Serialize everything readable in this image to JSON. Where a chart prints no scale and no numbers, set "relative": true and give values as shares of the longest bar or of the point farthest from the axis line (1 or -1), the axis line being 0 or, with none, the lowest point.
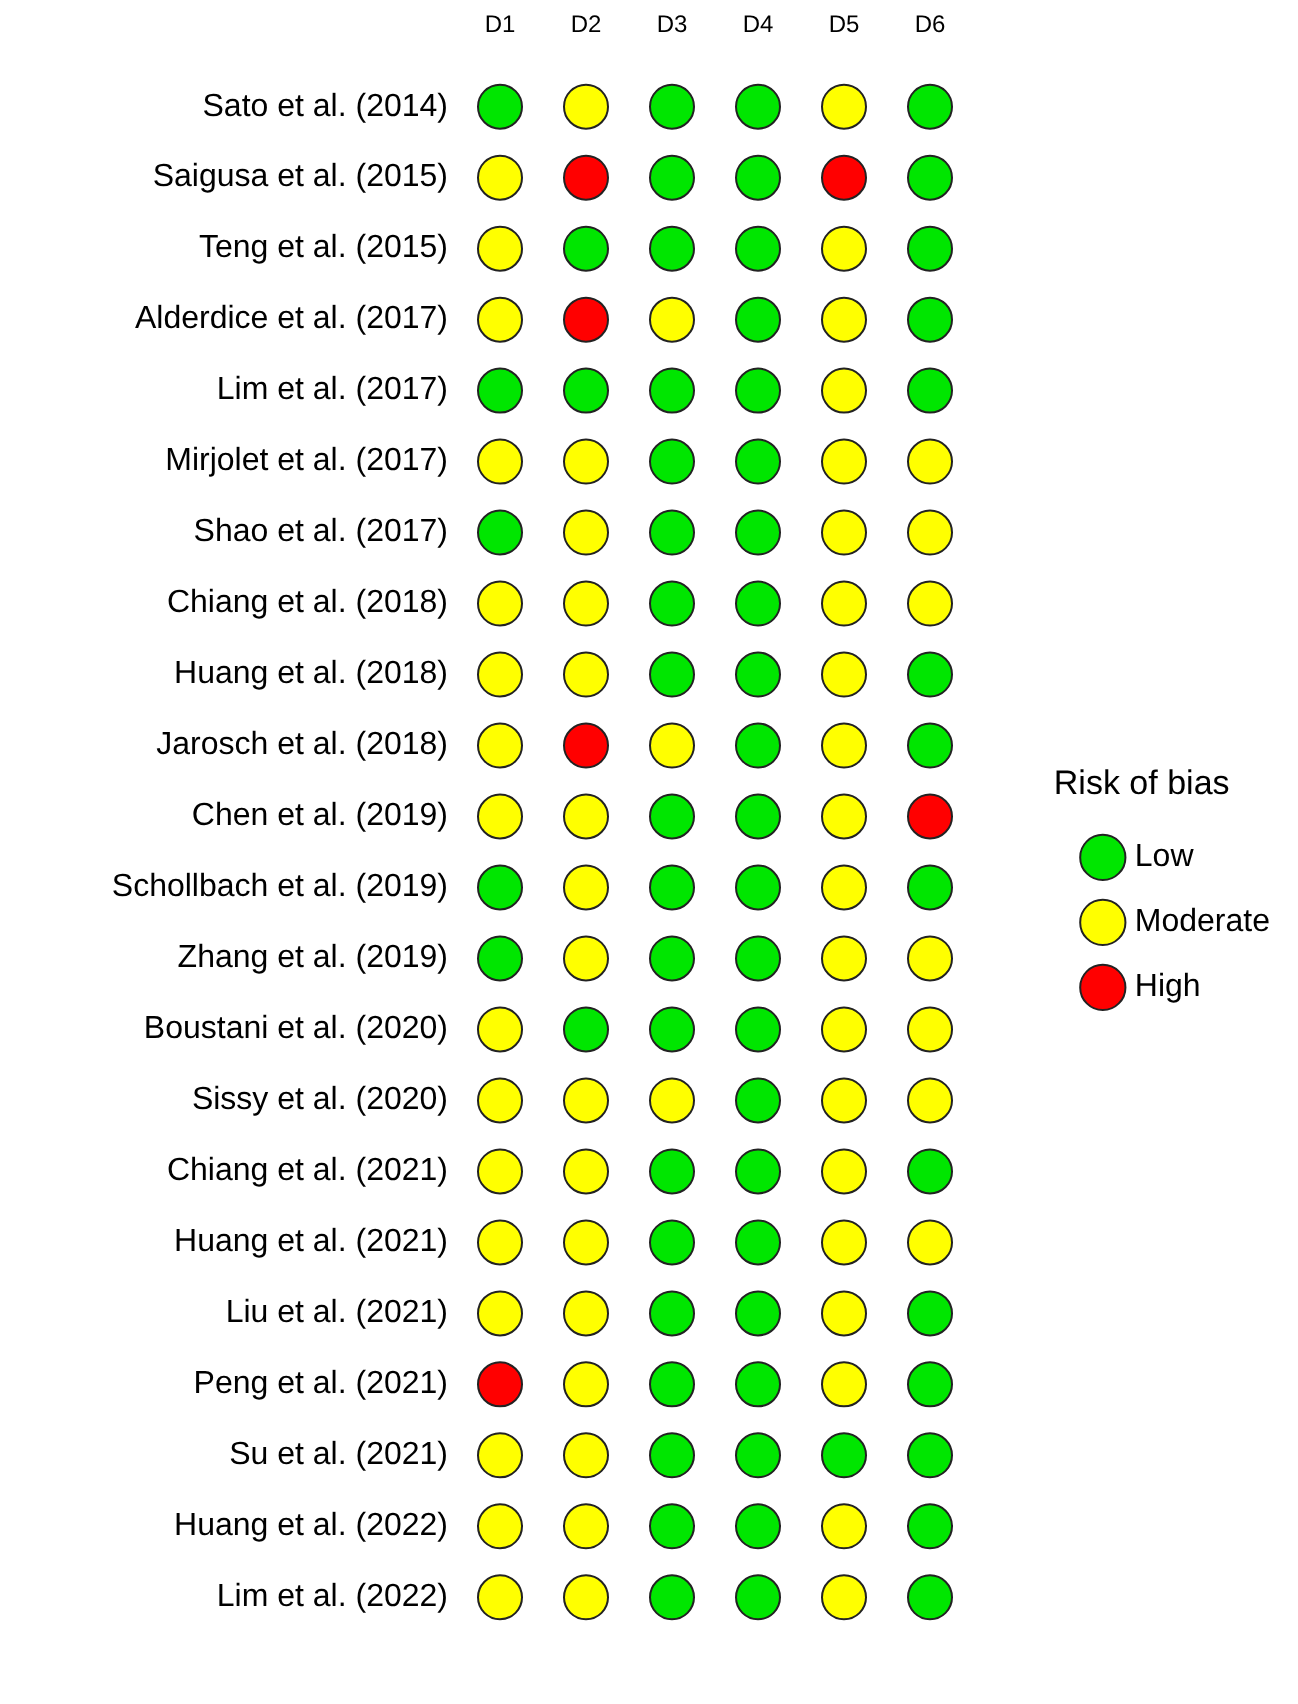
{
  "chart_data": {
    "type": "scatter",
    "orientation": "horizontal",
    "relative": true,
    "categories": [
      "Sato et al. (2014)",
      "Saigusa et al. (2015)",
      "Teng et al. (2015)",
      "Alderdice et al. (2017)",
      "Lim et al. (2017)",
      "Mirjolet et al. (2017)",
      "Shao et al. (2017)",
      "Chiang et al. (2018)",
      "Huang et al. (2018)",
      "Jarosch et al. (2018)",
      "Chen et al. (2019)",
      "Schollbach et al. (2019)",
      "Zhang et al. (2019)",
      "Boustani et al. (2020)",
      "Sissy et al. (2020)",
      "Chiang et al. (2021)",
      "Huang et al. (2021)",
      "Liu et al. (2021)",
      "Peng et al. (2021)",
      "Su et al. (2021)",
      "Huang et al. (2022)",
      "Lim et al. (2022)"
    ],
    "annotations": [
      "D1",
      "D2",
      "D3",
      "D4",
      "D5",
      "D6"
    ],
    "series": [
      {
        "name": "Low",
        "color": "#00e600",
        "x": [
          "Sato et al. (2014)",
          "Sato et al. (2014)",
          "Sato et al. (2014)",
          "Sato et al. (2014)",
          "Saigusa et al. (2015)",
          "Saigusa et al. (2015)",
          "Saigusa et al. (2015)",
          "Teng et al. (2015)",
          "Teng et al. (2015)",
          "Teng et al. (2015)",
          "Teng et al. (2015)",
          "Alderdice et al. (2017)",
          "Alderdice et al. (2017)",
          "Lim et al. (2017)",
          "Lim et al. (2017)",
          "Lim et al. (2017)",
          "Lim et al. (2017)",
          "Lim et al. (2017)",
          "Mirjolet et al. (2017)",
          "Mirjolet et al. (2017)",
          "Shao et al. (2017)",
          "Shao et al. (2017)",
          "Shao et al. (2017)",
          "Chiang et al. (2018)",
          "Chiang et al. (2018)",
          "Huang et al. (2018)",
          "Huang et al. (2018)",
          "Huang et al. (2018)",
          "Jarosch et al. (2018)",
          "Jarosch et al. (2018)",
          "Chen et al. (2019)",
          "Chen et al. (2019)",
          "Schollbach et al. (2019)",
          "Schollbach et al. (2019)",
          "Schollbach et al. (2019)",
          "Schollbach et al. (2019)",
          "Zhang et al. (2019)",
          "Zhang et al. (2019)",
          "Zhang et al. (2019)",
          "Boustani et al. (2020)",
          "Boustani et al. (2020)",
          "Boustani et al. (2020)",
          "Sissy et al. (2020)",
          "Chiang et al. (2021)",
          "Chiang et al. (2021)",
          "Chiang et al. (2021)",
          "Huang et al. (2021)",
          "Huang et al. (2021)",
          "Liu et al. (2021)",
          "Liu et al. (2021)",
          "Liu et al. (2021)",
          "Peng et al. (2021)",
          "Peng et al. (2021)",
          "Peng et al. (2021)",
          "Su et al. (2021)",
          "Su et al. (2021)",
          "Su et al. (2021)",
          "Su et al. (2021)",
          "Huang et al. (2022)",
          "Huang et al. (2022)",
          "Huang et al. (2022)",
          "Lim et al. (2022)",
          "Lim et al. (2022)",
          "Lim et al. (2022)"
        ],
        "values": [
          0,
          0.4,
          0.6,
          1,
          0.4,
          0.6,
          1,
          0.2,
          0.4,
          0.6,
          1,
          0.6,
          1,
          0,
          0.2,
          0.4,
          0.6,
          1,
          0.4,
          0.6,
          0,
          0.4,
          0.6,
          0.4,
          0.6,
          0.4,
          0.6,
          1,
          0.6,
          1,
          0.4,
          0.6,
          0,
          0.4,
          0.6,
          1,
          0,
          0.4,
          0.6,
          0.2,
          0.4,
          0.6,
          0.6,
          0.4,
          0.6,
          1,
          0.4,
          0.6,
          0.4,
          0.6,
          1,
          0.4,
          0.6,
          1,
          0.4,
          0.6,
          0.8,
          1,
          0.4,
          0.6,
          1,
          0.4,
          0.6,
          1
        ]
      },
      {
        "name": "Moderate",
        "color": "#ffff00",
        "x": [
          "Sato et al. (2014)",
          "Sato et al. (2014)",
          "Saigusa et al. (2015)",
          "Teng et al. (2015)",
          "Teng et al. (2015)",
          "Alderdice et al. (2017)",
          "Alderdice et al. (2017)",
          "Alderdice et al. (2017)",
          "Lim et al. (2017)",
          "Mirjolet et al. (2017)",
          "Mirjolet et al. (2017)",
          "Mirjolet et al. (2017)",
          "Mirjolet et al. (2017)",
          "Shao et al. (2017)",
          "Shao et al. (2017)",
          "Shao et al. (2017)",
          "Chiang et al. (2018)",
          "Chiang et al. (2018)",
          "Chiang et al. (2018)",
          "Chiang et al. (2018)",
          "Huang et al. (2018)",
          "Huang et al. (2018)",
          "Huang et al. (2018)",
          "Jarosch et al. (2018)",
          "Jarosch et al. (2018)",
          "Jarosch et al. (2018)",
          "Chen et al. (2019)",
          "Chen et al. (2019)",
          "Chen et al. (2019)",
          "Schollbach et al. (2019)",
          "Schollbach et al. (2019)",
          "Zhang et al. (2019)",
          "Zhang et al. (2019)",
          "Zhang et al. (2019)",
          "Boustani et al. (2020)",
          "Boustani et al. (2020)",
          "Boustani et al. (2020)",
          "Sissy et al. (2020)",
          "Sissy et al. (2020)",
          "Sissy et al. (2020)",
          "Sissy et al. (2020)",
          "Sissy et al. (2020)",
          "Chiang et al. (2021)",
          "Chiang et al. (2021)",
          "Chiang et al. (2021)",
          "Huang et al. (2021)",
          "Huang et al. (2021)",
          "Huang et al. (2021)",
          "Huang et al. (2021)",
          "Liu et al. (2021)",
          "Liu et al. (2021)",
          "Liu et al. (2021)",
          "Peng et al. (2021)",
          "Peng et al. (2021)",
          "Su et al. (2021)",
          "Su et al. (2021)",
          "Huang et al. (2022)",
          "Huang et al. (2022)",
          "Huang et al. (2022)",
          "Lim et al. (2022)",
          "Lim et al. (2022)",
          "Lim et al. (2022)"
        ],
        "values": [
          0.2,
          0.8,
          0,
          0,
          0.8,
          0,
          0.4,
          0.8,
          0.8,
          0,
          0.2,
          0.8,
          1,
          0.2,
          0.8,
          1,
          0,
          0.2,
          0.8,
          1,
          0,
          0.2,
          0.8,
          0,
          0.4,
          0.8,
          0,
          0.2,
          0.8,
          0.2,
          0.8,
          0.2,
          0.8,
          1,
          0,
          0.8,
          1,
          0,
          0.2,
          0.4,
          0.8,
          1,
          0,
          0.2,
          0.8,
          0,
          0.2,
          0.8,
          1,
          0,
          0.2,
          0.8,
          0.2,
          0.8,
          0,
          0.2,
          0,
          0.2,
          0.8,
          0,
          0.2,
          0.8
        ]
      },
      {
        "name": "High",
        "color": "#ff0000",
        "x": [
          "Saigusa et al. (2015)",
          "Saigusa et al. (2015)",
          "Alderdice et al. (2017)",
          "Jarosch et al. (2018)",
          "Chen et al. (2019)",
          "Peng et al. (2021)"
        ],
        "values": [
          0.2,
          0.8,
          0.2,
          0.2,
          1,
          0
        ]
      }
    ],
    "marker": "circle",
    "legend": "right",
    "legend_title": "Risk of bias"
  }
}
